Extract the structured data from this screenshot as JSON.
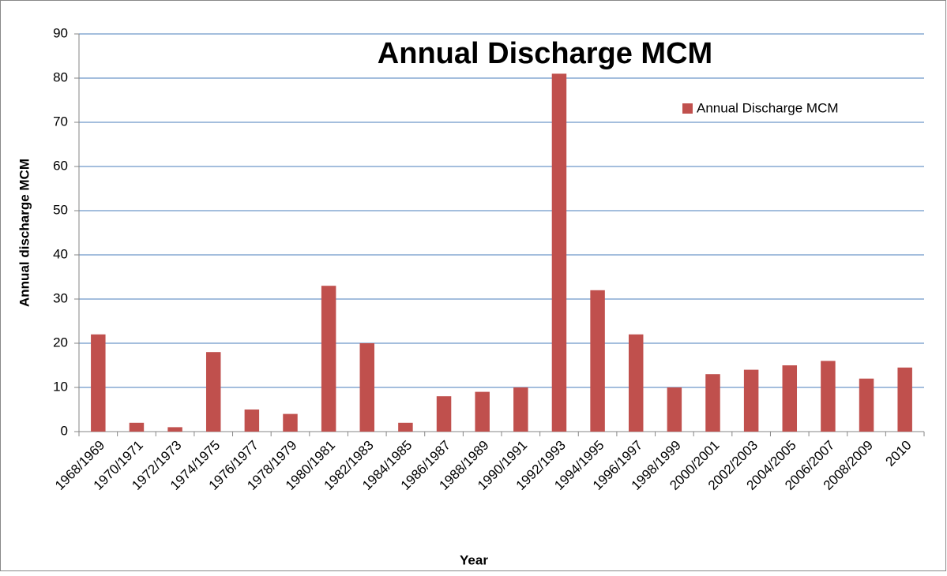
{
  "chart_data": {
    "type": "bar",
    "title": "Annual Discharge MCM",
    "x_label": "Year",
    "y_label": "Annual discharge MCM",
    "categories": [
      "1968/1969",
      "1970/1971",
      "1972/1973",
      "1974/1975",
      "1976/1977",
      "1978/1979",
      "1980/1981",
      "1982/1983",
      "1984/1985",
      "1986/1987",
      "1988/1989",
      "1990/1991",
      "1992/1993",
      "1994/1995",
      "1996/1997",
      "1998/1999",
      "2000/2001",
      "2002/2003",
      "2004/2005",
      "2006/2007",
      "2008/2009",
      "2010"
    ],
    "series": [
      {
        "name": "Annual Discharge MCM",
        "color": "#c0504d",
        "values": [
          22,
          2,
          1,
          18,
          5,
          4,
          33,
          20,
          2,
          8,
          9,
          10,
          81,
          32,
          22,
          10,
          13,
          14,
          15,
          16,
          12,
          14.5
        ]
      }
    ],
    "ylim": [
      0,
      90
    ],
    "yticks": [
      0,
      10,
      20,
      30,
      40,
      50,
      60,
      70,
      80,
      90
    ],
    "grid": true,
    "legend": "upper right"
  }
}
